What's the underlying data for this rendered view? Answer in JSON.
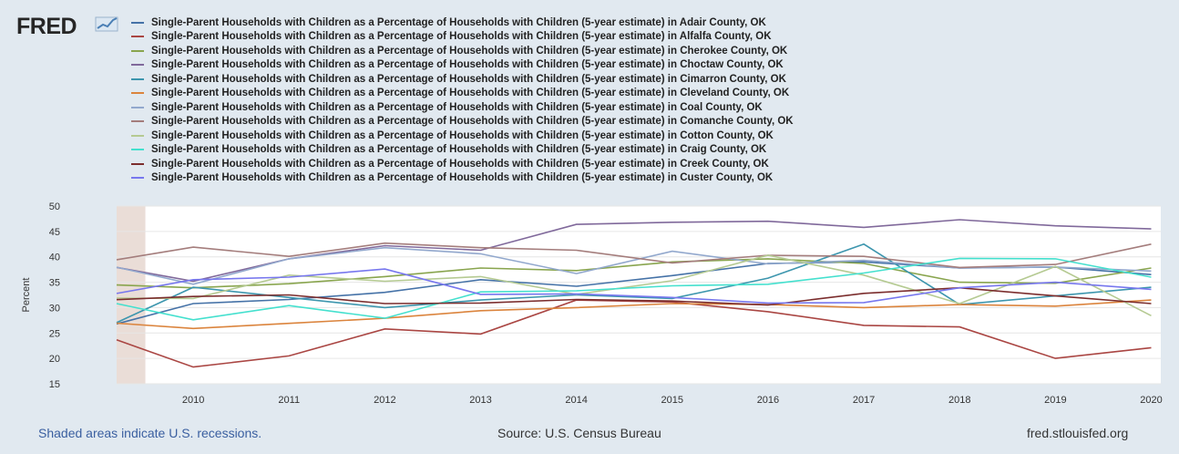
{
  "brand": {
    "name": "FRED"
  },
  "footer": {
    "recessions_note": "Shaded areas indicate U.S. recessions.",
    "source": "Source: U.S. Census Bureau",
    "site": "fred.stlouisfed.org"
  },
  "chart_data": {
    "type": "line",
    "ylabel": "Percent",
    "xlabel": "",
    "title": "",
    "ylim": [
      15,
      50
    ],
    "xlim": [
      2009.2,
      2020.1
    ],
    "yticks": [
      15,
      20,
      25,
      30,
      35,
      40,
      45,
      50
    ],
    "x": [
      2009,
      2010,
      2011,
      2012,
      2013,
      2014,
      2015,
      2016,
      2017,
      2018,
      2019,
      2020
    ],
    "grid": true,
    "legend_position": "top",
    "recession_shading": [
      [
        2009.2,
        2009.5
      ]
    ],
    "series": [
      {
        "name": "Single-Parent Households with Children as a Percentage of Households with Children (5-year estimate) in Adair County, OK",
        "color": "#4572a7",
        "values": [
          25.8,
          30.8,
          31.6,
          33.0,
          35.5,
          34.2,
          36.3,
          38.7,
          39.0,
          37.8,
          38.0,
          36.5
        ]
      },
      {
        "name": "Single-Parent Households with Children as a Percentage of Households with Children (5-year estimate) in Alfalfa County, OK",
        "color": "#aa4643",
        "values": [
          25.0,
          18.3,
          20.5,
          25.8,
          24.8,
          31.5,
          31.1,
          29.2,
          26.5,
          26.2,
          20.0,
          22.1
        ]
      },
      {
        "name": "Single-Parent Households with Children as a Percentage of Households with Children (5-year estimate) in Cherokee County, OK",
        "color": "#89a54e",
        "values": [
          34.6,
          33.9,
          34.7,
          36.1,
          37.8,
          37.3,
          39.0,
          39.6,
          38.7,
          35.0,
          34.8,
          37.8
        ]
      },
      {
        "name": "Single-Parent Households with Children as a Percentage of Households with Children (5-year estimate) in Choctaw County, OK",
        "color": "#80699b",
        "values": [
          38.6,
          35.2,
          39.6,
          42.2,
          41.3,
          46.4,
          46.8,
          47.0,
          45.8,
          47.3,
          46.1,
          45.5
        ]
      },
      {
        "name": "Single-Parent Households with Children as a Percentage of Households with Children (5-year estimate) in Cimarron County, OK",
        "color": "#3d96ae",
        "values": [
          25.3,
          34.0,
          32.0,
          30.0,
          31.5,
          32.5,
          31.8,
          35.8,
          42.5,
          30.6,
          32.3,
          34.0
        ]
      },
      {
        "name": "Single-Parent Households with Children as a Percentage of Households with Children (5-year estimate) in Cleveland County, OK",
        "color": "#db843d",
        "values": [
          27.2,
          25.9,
          26.9,
          27.9,
          29.4,
          30.0,
          30.8,
          30.6,
          30.0,
          30.6,
          30.3,
          31.5
        ]
      },
      {
        "name": "Single-Parent Households with Children as a Percentage of Households with Children (5-year estimate) in Coal County, OK",
        "color": "#92a8cd",
        "values": [
          38.8,
          34.6,
          39.6,
          41.8,
          40.6,
          36.7,
          41.1,
          38.6,
          39.3,
          37.8,
          38.0,
          37.2
        ]
      },
      {
        "name": "Single-Parent Households with Children as a Percentage of Households with Children (5-year estimate) in Comanche County, OK",
        "color": "#a47d7c",
        "values": [
          38.8,
          41.9,
          40.1,
          42.7,
          41.8,
          41.3,
          38.8,
          40.3,
          40.1,
          37.9,
          38.5,
          42.5
        ]
      },
      {
        "name": "Single-Parent Households with Children as a Percentage of Households with Children (5-year estimate) in Cotton County, OK",
        "color": "#b5ca92",
        "values": [
          31.9,
          31.8,
          36.4,
          35.2,
          36.1,
          32.6,
          35.3,
          40.3,
          36.4,
          30.8,
          38.1,
          28.4
        ]
      },
      {
        "name": "Single-Parent Households with Children as a Percentage of Households with Children (5-year estimate) in Craig County, OK",
        "color": "#44e0ce",
        "values": [
          31.6,
          27.6,
          30.4,
          27.9,
          33.1,
          33.3,
          34.3,
          34.6,
          36.8,
          39.7,
          39.6,
          36.0
        ]
      },
      {
        "name": "Single-Parent Households with Children as a Percentage of Households with Children (5-year estimate) in Creek County, OK",
        "color": "#7b2d2d",
        "values": [
          31.4,
          32.2,
          32.5,
          30.8,
          30.9,
          31.6,
          31.3,
          30.5,
          32.8,
          33.9,
          32.3,
          30.8
        ]
      },
      {
        "name": "Single-Parent Households with Children as a Percentage of Households with Children (5-year estimate) in Custer County, OK",
        "color": "#7777ee",
        "values": [
          32.1,
          35.5,
          36.0,
          37.6,
          32.6,
          32.7,
          32.0,
          30.9,
          31.0,
          33.9,
          35.0,
          33.6
        ]
      }
    ]
  }
}
